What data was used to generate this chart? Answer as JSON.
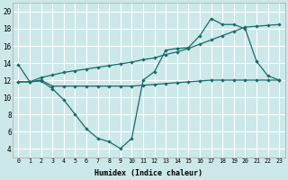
{
  "xlabel": "Humidex (Indice chaleur)",
  "background_color": "#cce8e8",
  "grid_color": "#ffffff",
  "line_color": "#1a6b6b",
  "xlim": [
    -0.5,
    23.5
  ],
  "ylim": [
    3.0,
    21.0
  ],
  "xticks": [
    0,
    1,
    2,
    3,
    4,
    5,
    6,
    7,
    8,
    9,
    10,
    11,
    12,
    13,
    14,
    15,
    16,
    17,
    18,
    19,
    20,
    21,
    22,
    23
  ],
  "yticks": [
    4,
    6,
    8,
    10,
    12,
    14,
    16,
    18,
    20
  ],
  "line1_x": [
    0,
    1,
    2,
    3,
    4,
    5,
    6,
    7,
    8,
    9,
    10,
    11,
    12,
    13,
    14,
    15,
    16,
    17,
    18,
    19,
    20,
    21,
    22,
    23
  ],
  "line1_y": [
    13.8,
    11.8,
    11.9,
    11.0,
    9.7,
    8.0,
    6.3,
    5.2,
    4.8,
    4.0,
    5.2,
    12.0,
    13.0,
    15.5,
    15.7,
    15.8,
    17.2,
    19.2,
    18.5,
    18.5,
    18.0,
    14.2,
    12.5,
    12.0
  ],
  "line2_x": [
    0,
    1,
    2,
    3,
    4,
    5,
    6,
    7,
    8,
    9,
    10,
    11,
    12,
    13,
    14,
    15,
    16,
    17,
    18,
    19,
    20,
    21,
    22,
    23
  ],
  "line2_y": [
    11.8,
    11.8,
    12.0,
    11.3,
    11.3,
    11.3,
    11.3,
    11.3,
    11.3,
    11.3,
    11.3,
    11.4,
    11.5,
    11.6,
    11.7,
    11.8,
    11.9,
    12.0,
    12.0,
    12.0,
    12.0,
    12.0,
    12.0,
    12.0
  ],
  "line3_x": [
    0,
    1,
    2,
    3,
    4,
    5,
    6,
    7,
    8,
    9,
    10,
    11,
    12,
    13,
    14,
    15,
    16,
    17,
    18,
    19,
    20,
    21,
    22,
    23
  ],
  "line3_y": [
    11.8,
    11.8,
    12.3,
    12.6,
    12.9,
    13.1,
    13.3,
    13.5,
    13.7,
    13.9,
    14.1,
    14.4,
    14.6,
    15.0,
    15.3,
    15.7,
    16.2,
    16.7,
    17.2,
    17.7,
    18.2,
    18.3,
    18.4,
    18.5
  ]
}
